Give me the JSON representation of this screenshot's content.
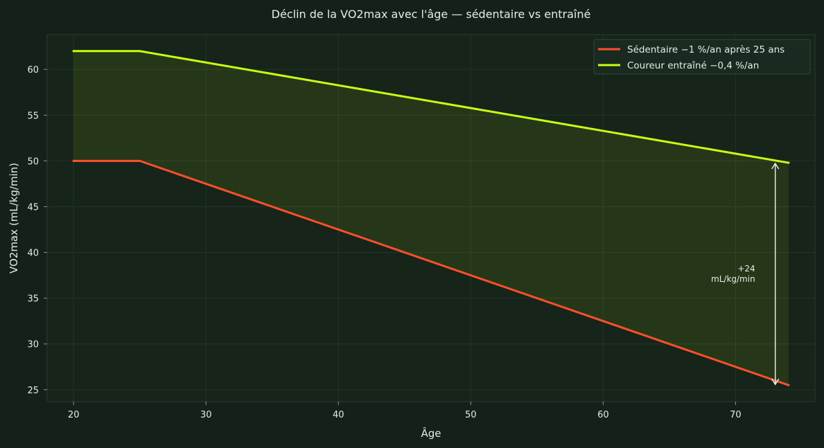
{
  "chart_data": {
    "type": "line",
    "title": "Déclin de la VO2max avec l'âge — sédentaire vs entraîné",
    "xlabel": "Âge",
    "ylabel": "VO2max (mL/kg/min)",
    "xlim": [
      18,
      76
    ],
    "ylim": [
      23.7,
      63.8
    ],
    "x_ticks": [
      20,
      30,
      40,
      50,
      60,
      70
    ],
    "y_ticks": [
      25,
      30,
      35,
      40,
      45,
      50,
      55,
      60
    ],
    "grid": true,
    "legend_position": "top-right",
    "series": [
      {
        "name": "Sédentaire  −1 %/an après 25 ans",
        "color": "#ff4f2b",
        "x": [
          20,
          25,
          74
        ],
        "y": [
          50,
          50,
          25.5
        ]
      },
      {
        "name": "Coureur entraîné  −0,4 %/an",
        "color": "#c8ff14",
        "x": [
          20,
          25,
          74
        ],
        "y": [
          62,
          62,
          49.8
        ]
      }
    ],
    "fill_between": {
      "color": "#c8ff14",
      "opacity": 0.09
    },
    "annotation": {
      "text_line1": "+24",
      "text_line2": "mL/kg/min",
      "arrow_x": 73,
      "arrow_y_from": 25.5,
      "arrow_y_to": 49.8
    }
  }
}
